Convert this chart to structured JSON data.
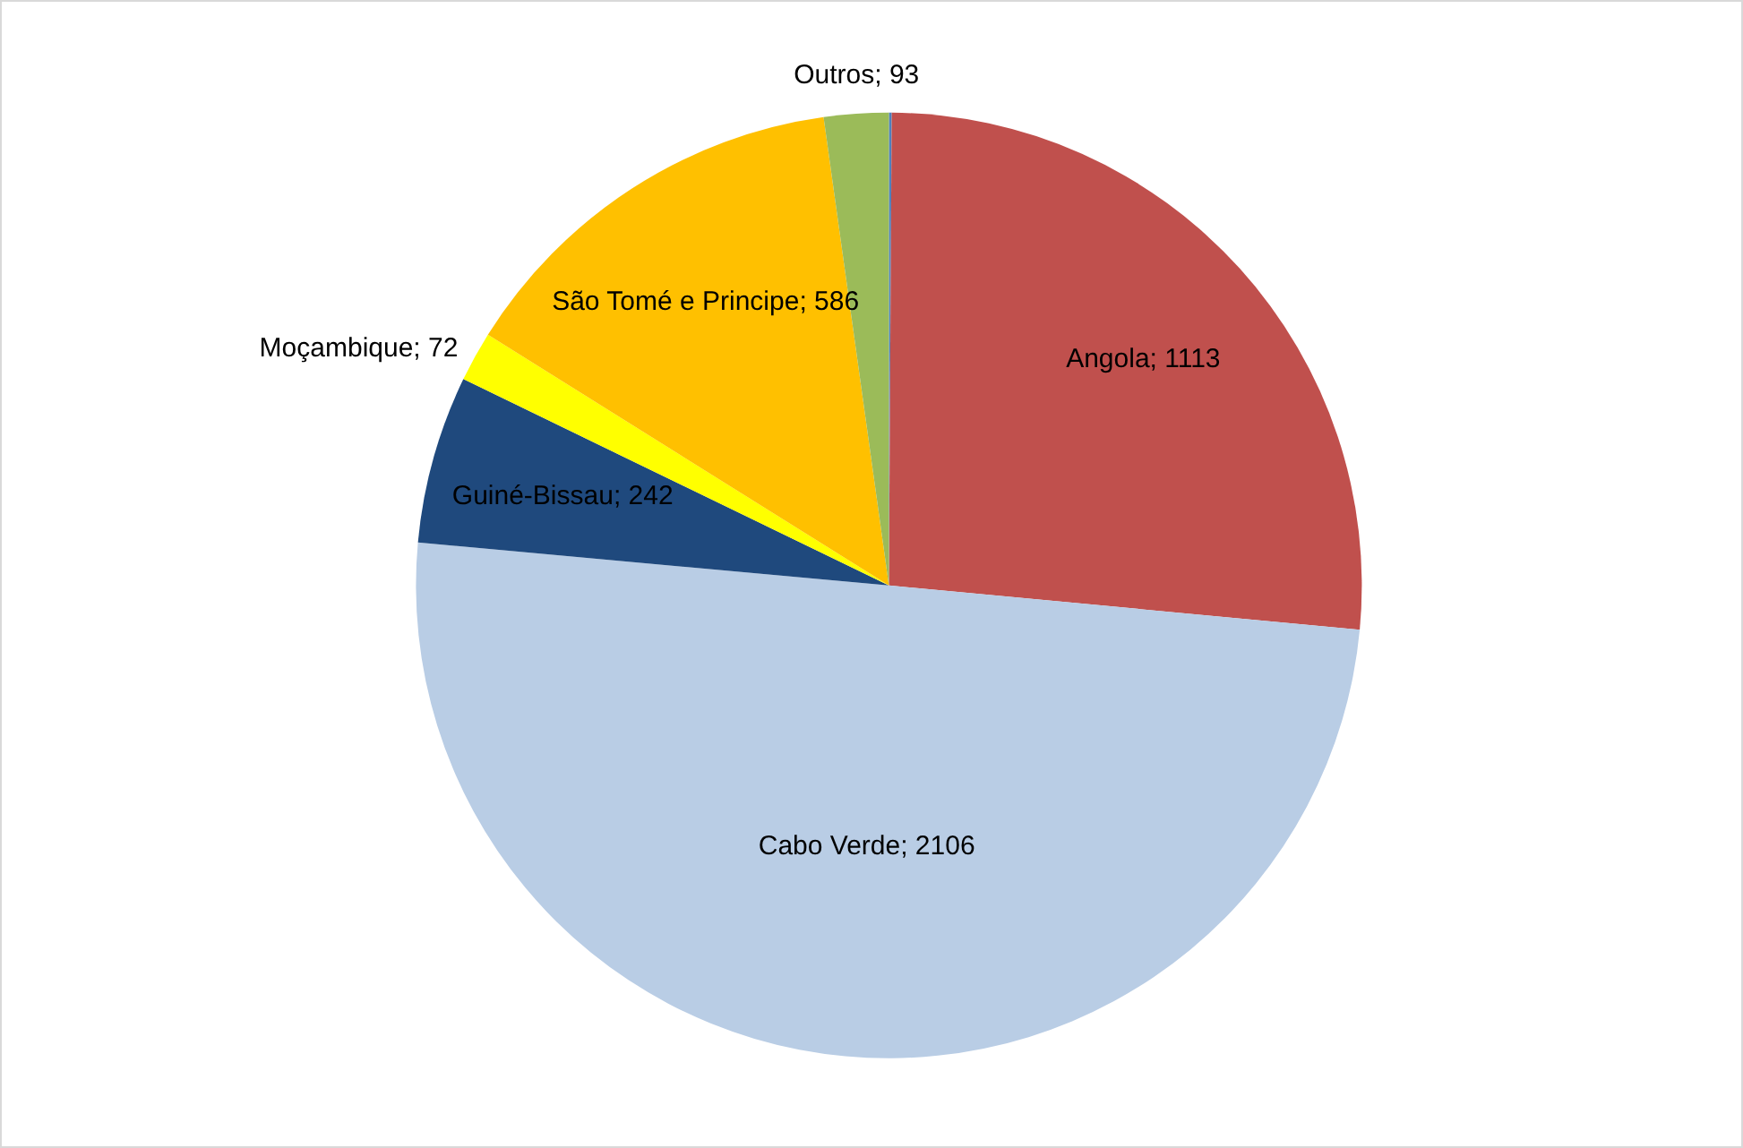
{
  "chart_data": {
    "type": "pie",
    "categories": [
      null,
      "Angola",
      "Cabo Verde",
      "Guiné-Bissau",
      "Moçambique",
      "São Tomé e Principe",
      "Outros"
    ],
    "values": [
      4,
      1113,
      2106,
      242,
      72,
      586,
      93
    ],
    "value_labels": [
      null,
      "1113",
      "2106",
      "242",
      "72",
      "586",
      "93"
    ],
    "colors": [
      "#4f81bd",
      "#c0504d",
      "#b9cde5",
      "#1f497d",
      "#ffff00",
      "#ffc000",
      "#9bbb59"
    ],
    "legend": false
  }
}
